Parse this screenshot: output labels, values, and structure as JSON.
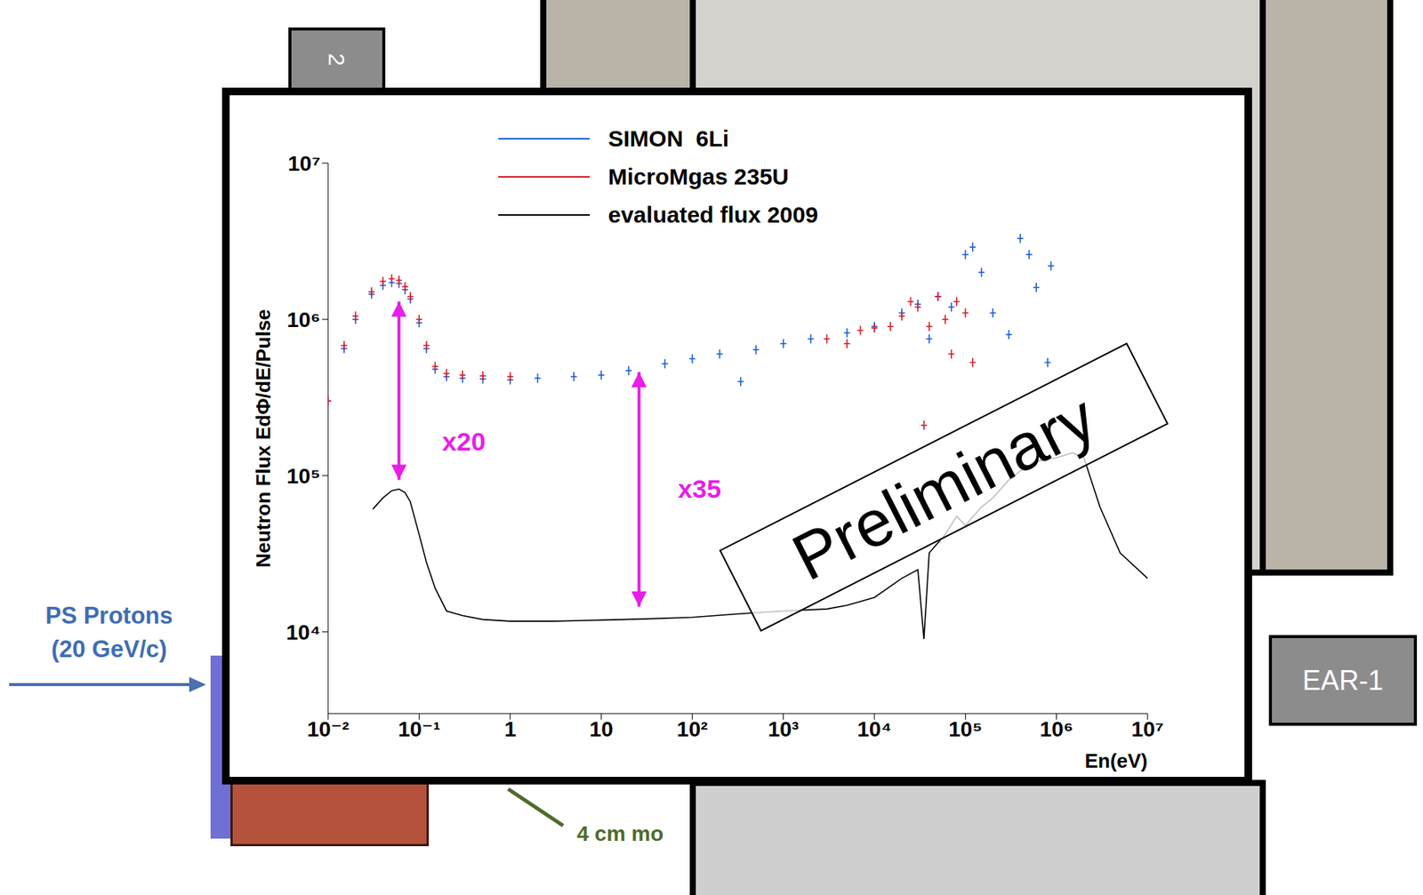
{
  "chart_data": {
    "type": "scatter",
    "log": true,
    "grid": false,
    "legend": "top",
    "y_label": "Neutron Flux EdΦ/dE/Pulse",
    "x_label": "En(eV)",
    "xlim": [
      0.01,
      10000000
    ],
    "xticks": [
      {
        "value": 0.01,
        "label": "10⁻²"
      },
      {
        "value": 0.1,
        "label": "10⁻¹"
      },
      1,
      10,
      {
        "value": 100,
        "label": "10²"
      },
      {
        "value": 1000,
        "label": "10³"
      },
      {
        "value": 10000,
        "label": "10⁴"
      },
      {
        "value": 100000,
        "label": "10⁵"
      },
      {
        "value": 1000000,
        "label": "10⁶"
      },
      {
        "value": 10000000,
        "label": "10⁷"
      }
    ],
    "ylim": [
      3000,
      10000000
    ],
    "yticks": [
      {
        "value": 10000,
        "label": "10⁴"
      },
      {
        "value": 100000,
        "label": "10⁵"
      },
      {
        "value": 1000000,
        "label": "10⁶"
      },
      {
        "value": 10000000,
        "label": "10⁷"
      }
    ],
    "series": [
      {
        "name": "SIMON  6Li",
        "color": "#1f5fd6",
        "type": "scatter",
        "marker": "cross",
        "x": [
          0.01,
          0.015,
          0.02,
          0.03,
          0.04,
          0.05,
          0.06,
          0.07,
          0.08,
          0.1,
          0.12,
          0.15,
          0.2,
          0.3,
          0.5,
          1,
          2,
          5,
          10,
          20,
          50,
          100,
          200,
          340,
          500,
          1000,
          2000,
          5000,
          10000,
          20000,
          30000,
          40000,
          50000,
          70000,
          100000,
          120000,
          150000,
          200000,
          300000,
          400000,
          500000,
          600000,
          800000,
          870000
        ],
        "values": [
          300000,
          650000,
          1000000,
          1450000,
          1650000,
          1720000,
          1700000,
          1550000,
          1350000,
          950000,
          650000,
          480000,
          430000,
          420000,
          415000,
          410000,
          420000,
          430000,
          440000,
          470000,
          520000,
          560000,
          600000,
          400000,
          640000,
          700000,
          750000,
          820000,
          900000,
          1100000,
          1250000,
          750000,
          1400000,
          1200000,
          2600000,
          2900000,
          2000000,
          1100000,
          800000,
          3300000,
          2600000,
          1600000,
          530000,
          2200000
        ]
      },
      {
        "name": "MicroMgas 235U",
        "color": "#d6202a",
        "type": "scatter",
        "marker": "cross",
        "x": [
          0.01,
          0.015,
          0.02,
          0.03,
          0.04,
          0.05,
          0.06,
          0.07,
          0.08,
          0.1,
          0.12,
          0.15,
          0.2,
          0.3,
          0.5,
          1,
          3000,
          5000,
          7000,
          10000,
          15000,
          20000,
          25000,
          30000,
          35000,
          40000,
          50000,
          60000,
          70000,
          80000,
          100000,
          120000
        ],
        "values": [
          300000,
          680000,
          1050000,
          1500000,
          1750000,
          1820000,
          1780000,
          1620000,
          1400000,
          1000000,
          680000,
          500000,
          450000,
          440000,
          435000,
          430000,
          750000,
          700000,
          850000,
          880000,
          900000,
          1050000,
          1300000,
          1200000,
          210000,
          900000,
          1400000,
          1000000,
          600000,
          1300000,
          1100000,
          530000
        ]
      },
      {
        "name": "evaluated flux 2009",
        "color": "#000000",
        "type": "line",
        "line_style": "solid",
        "x": [
          0.031,
          0.04,
          0.05,
          0.06,
          0.07,
          0.08,
          0.1,
          0.12,
          0.15,
          0.2,
          0.3,
          0.5,
          1,
          3,
          10,
          30,
          100,
          300,
          1000,
          3000,
          5000,
          10000,
          20000,
          30000,
          35000,
          40000,
          60000,
          80000,
          100000,
          150000,
          200000,
          300000,
          400000,
          600000,
          1000000,
          1500000,
          2000000,
          3000000,
          5000000,
          10000000
        ],
        "values": [
          61000,
          72000,
          80000,
          82000,
          78000,
          68000,
          42000,
          28000,
          19000,
          13600,
          12700,
          12000,
          11700,
          11700,
          11900,
          12100,
          12400,
          13000,
          13600,
          14000,
          14800,
          16600,
          22000,
          25000,
          9000,
          32000,
          42000,
          55000,
          48000,
          63000,
          72000,
          94000,
          107000,
          123000,
          130000,
          140000,
          130000,
          63000,
          32000,
          22000
        ]
      }
    ],
    "annotations": [
      {
        "text": "x20",
        "x": 0.31,
        "y": 160000,
        "arrow": {
          "x": 0.06,
          "y": [
            94000,
            1300000
          ]
        }
      },
      {
        "text": "x35",
        "x": 120,
        "y": 80000,
        "arrow": {
          "x": 26,
          "y": [
            14500,
            460000
          ]
        }
      }
    ],
    "stamp": "Preliminary"
  },
  "slide": {
    "beam_label": [
      "PS Protons",
      "(20 GeV/c)"
    ],
    "area_label": "EAR-1",
    "moderator_label": "4 cm mo",
    "tab_label": "2"
  }
}
